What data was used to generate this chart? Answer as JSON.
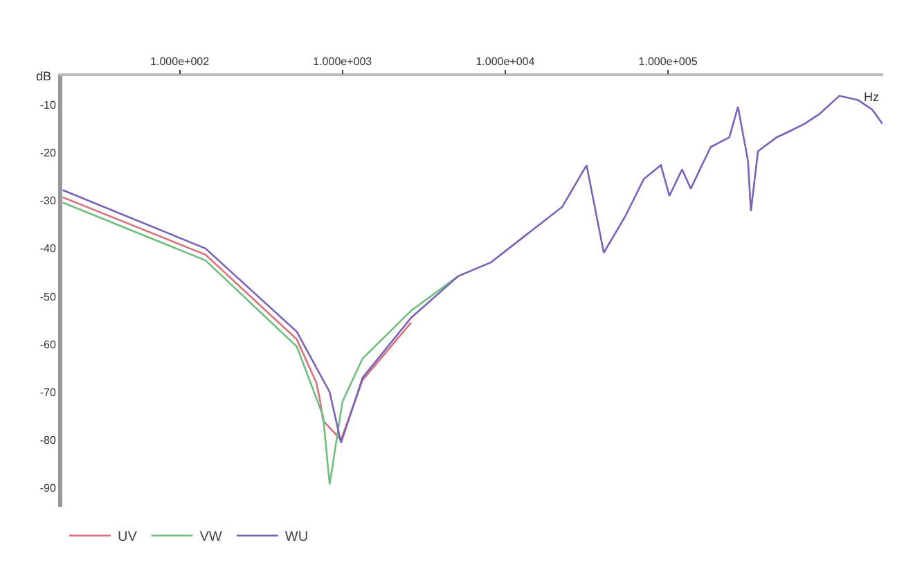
{
  "chart_data": {
    "type": "line",
    "xlabel": "Hz",
    "ylabel": "dB",
    "log": "x",
    "xlim": [
      19,
      2100000
    ],
    "ylim": [
      -94,
      -4
    ],
    "xticks": [
      {
        "value": 100,
        "label": "1.000e+002"
      },
      {
        "value": 1000,
        "label": "1.000e+003"
      },
      {
        "value": 10000,
        "label": "1.000e+004"
      },
      {
        "value": 100000,
        "label": "1.000e+005"
      }
    ],
    "yticks": [
      -10,
      -20,
      -30,
      -40,
      -50,
      -60,
      -70,
      -80,
      -90
    ],
    "grid": false,
    "legend": "bottom left",
    "line_style": "solid",
    "marker": "none",
    "series": [
      {
        "name": "UV",
        "color": "#d9707a",
        "x": [
          19.1,
          144,
          524,
          690,
          724,
          760,
          980,
          1330,
          2640
        ],
        "values": [
          -29.3,
          -41.3,
          -59,
          -68,
          -71.3,
          -76,
          -80,
          -67.5,
          -55.5
        ]
      },
      {
        "name": "VW",
        "color": "#6fbf7f",
        "x": [
          19.1,
          144,
          524,
          760,
          834,
          1000,
          1330,
          2640,
          5140
        ],
        "values": [
          -30.4,
          -42.5,
          -60.5,
          -75,
          -89.3,
          -72,
          -63,
          -53,
          -45.8
        ]
      },
      {
        "name": "WU",
        "color": "#7a62b8",
        "x": [
          19.1,
          144,
          524,
          834,
          980,
          1330,
          2640,
          5140,
          8170,
          22400,
          31600,
          40300,
          54600,
          71000,
          90400,
          102000,
          122000,
          138000,
          183000,
          238000,
          269000,
          310000,
          323000,
          357000,
          464000,
          568000,
          695000,
          851000,
          1130000,
          1470000,
          1800000,
          2070000
        ],
        "values": [
          -27.8,
          -40,
          -57.4,
          -70,
          -80.6,
          -67,
          -54.5,
          -45.8,
          -42.9,
          -31.3,
          -22.6,
          -40.9,
          -33.3,
          -25.5,
          -22.6,
          -29,
          -23.5,
          -27.5,
          -18.8,
          -16.8,
          -10.4,
          -21.7,
          -32.2,
          -19.7,
          -16.8,
          -15.4,
          -13.9,
          -11.9,
          -8.1,
          -9,
          -11,
          -13.9
        ]
      }
    ]
  }
}
